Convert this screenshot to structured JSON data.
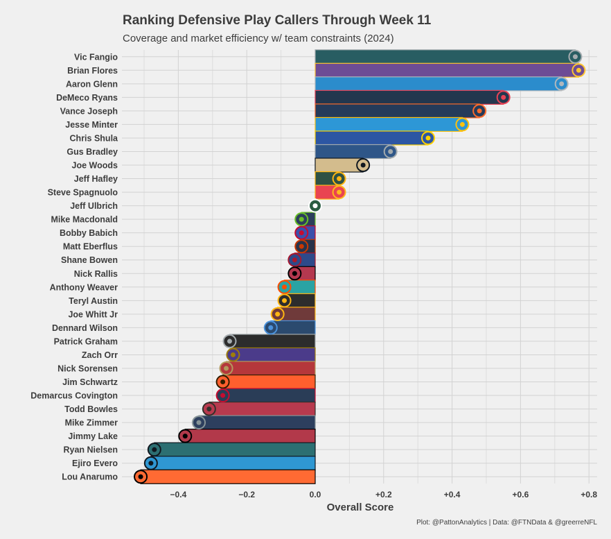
{
  "chart_data": {
    "type": "bar",
    "orientation": "horizontal",
    "title": "Ranking Defensive Play Callers Through Week 11",
    "subtitle": "Coverage and market efficiency w/ team constraints (2024)",
    "xlabel": "Overall Score",
    "ylabel": "",
    "xlim": [
      -0.57,
      0.82
    ],
    "xticks": [
      -0.4,
      -0.2,
      0.0,
      0.2,
      0.4,
      0.6,
      0.8
    ],
    "xtick_labels": [
      "−0.4",
      "−0.2",
      "0.0",
      "+0.2",
      "+0.4",
      "+0.6",
      "+0.8"
    ],
    "grid": true,
    "caption": "Plot: @PattonAnalytics | Data: @FTNData & @greerreNFL",
    "bars": [
      {
        "name": "Vic Fangio",
        "value": 0.76,
        "fill": "#285d62",
        "stroke": "#a5acaf",
        "icon": "eagles-logo"
      },
      {
        "name": "Brian Flores",
        "value": 0.77,
        "fill": "#6d4c95",
        "stroke": "#ffc62f",
        "icon": "vikings-logo"
      },
      {
        "name": "Aaron Glenn",
        "value": 0.72,
        "fill": "#2b8ccc",
        "stroke": "#b0b7bc",
        "icon": "lions-logo"
      },
      {
        "name": "DeMeco Ryans",
        "value": 0.55,
        "fill": "#23374e",
        "stroke": "#e84356",
        "icon": "texans-logo"
      },
      {
        "name": "Vance Joseph",
        "value": 0.48,
        "fill": "#253b5a",
        "stroke": "#fb6a2b",
        "icon": "broncos-logo"
      },
      {
        "name": "Jesse Minter",
        "value": 0.43,
        "fill": "#2d97d6",
        "stroke": "#ffc20e",
        "icon": "chargers-logo"
      },
      {
        "name": "Chris Shula",
        "value": 0.33,
        "fill": "#2c56a3",
        "stroke": "#ffd100",
        "icon": "rams-logo"
      },
      {
        "name": "Gus Bradley",
        "value": 0.22,
        "fill": "#2e5688",
        "stroke": "#a2aaad",
        "icon": "colts-logo"
      },
      {
        "name": "Joe Woods",
        "value": 0.14,
        "fill": "#d3bc8d",
        "stroke": "#101820",
        "icon": "saints-logo"
      },
      {
        "name": "Jeff Hafley",
        "value": 0.07,
        "fill": "#2e5144",
        "stroke": "#ffb612",
        "icon": "packers-logo"
      },
      {
        "name": "Steve Spagnuolo",
        "value": 0.07,
        "fill": "#e94451",
        "stroke": "#ffb81c",
        "icon": "chiefs-logo"
      },
      {
        "name": "Jeff Ulbrich",
        "value": 0.0,
        "fill": "#2b5d42",
        "stroke": "#ffffff",
        "icon": "jets-logo"
      },
      {
        "name": "Mike Macdonald",
        "value": -0.04,
        "fill": "#2c3e5c",
        "stroke": "#69be28",
        "icon": "seahawks-logo"
      },
      {
        "name": "Bobby Babich",
        "value": -0.04,
        "fill": "#3b4fab",
        "stroke": "#c60c30",
        "icon": "bills-logo"
      },
      {
        "name": "Matt Eberflus",
        "value": -0.04,
        "fill": "#28334a",
        "stroke": "#c83803",
        "icon": "bears-logo"
      },
      {
        "name": "Shane Bowen",
        "value": -0.06,
        "fill": "#2d4a8a",
        "stroke": "#a71930",
        "icon": "giants-logo"
      },
      {
        "name": "Nick Rallis",
        "value": -0.06,
        "fill": "#b4384f",
        "stroke": "#000000",
        "icon": "cardinals-logo"
      },
      {
        "name": "Anthony Weaver",
        "value": -0.09,
        "fill": "#2aa3a3",
        "stroke": "#fc4c02",
        "icon": "dolphins-logo"
      },
      {
        "name": "Teryl Austin",
        "value": -0.09,
        "fill": "#2d2d2d",
        "stroke": "#ffb612",
        "icon": "steelers-logo"
      },
      {
        "name": "Joe Whitt Jr",
        "value": -0.11,
        "fill": "#6f3a3a",
        "stroke": "#ffb612",
        "icon": "commanders-logo"
      },
      {
        "name": "Dennard Wilson",
        "value": -0.13,
        "fill": "#2b4a6e",
        "stroke": "#4b92db",
        "icon": "titans-logo"
      },
      {
        "name": "Patrick Graham",
        "value": -0.25,
        "fill": "#2c2c2c",
        "stroke": "#a5acaf",
        "icon": "raiders-logo"
      },
      {
        "name": "Zach Orr",
        "value": -0.24,
        "fill": "#4b3b8a",
        "stroke": "#9e7c0c",
        "icon": "ravens-logo"
      },
      {
        "name": "Nick Sorensen",
        "value": -0.26,
        "fill": "#b5373b",
        "stroke": "#b3995d",
        "icon": "49ers-logo"
      },
      {
        "name": "Jim Schwartz",
        "value": -0.27,
        "fill": "#ff5f2e",
        "stroke": "#311d00",
        "icon": "browns-logo"
      },
      {
        "name": "Demarcus Covington",
        "value": -0.27,
        "fill": "#2a3d57",
        "stroke": "#c60c30",
        "icon": "patriots-logo"
      },
      {
        "name": "Todd Bowles",
        "value": -0.31,
        "fill": "#b83a4e",
        "stroke": "#34302b",
        "icon": "buccaneers-logo"
      },
      {
        "name": "Mike Zimmer",
        "value": -0.34,
        "fill": "#2d3f5e",
        "stroke": "#869397",
        "icon": "cowboys-logo"
      },
      {
        "name": "Jimmy Lake",
        "value": -0.38,
        "fill": "#b2394a",
        "stroke": "#000000",
        "icon": "falcons-logo"
      },
      {
        "name": "Ryan Nielsen",
        "value": -0.47,
        "fill": "#2c6f72",
        "stroke": "#101820",
        "icon": "jaguars-logo"
      },
      {
        "name": "Ejiro Evero",
        "value": -0.48,
        "fill": "#2f97d2",
        "stroke": "#101820",
        "icon": "panthers-logo"
      },
      {
        "name": "Lou Anarumo",
        "value": -0.51,
        "fill": "#ff6a33",
        "stroke": "#000000",
        "icon": "bengals-logo"
      }
    ]
  }
}
